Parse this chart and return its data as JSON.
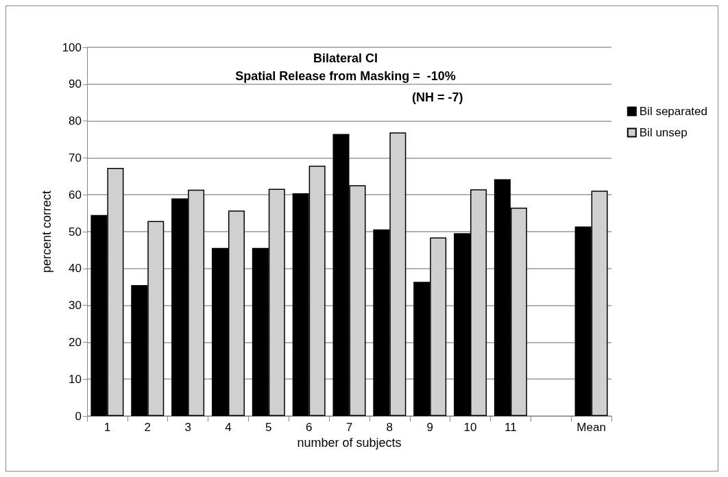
{
  "chart_data": {
    "type": "bar",
    "title": "Bilateral CI",
    "subtitle": "Spatial Release from Masking =  -10%",
    "annotations": [
      "(NH = -7)"
    ],
    "xlabel": "number of subjects",
    "ylabel": "percent correct",
    "categories": [
      "1",
      "2",
      "3",
      "4",
      "5",
      "6",
      "7",
      "8",
      "9",
      "10",
      "11",
      null,
      "Mean"
    ],
    "series": [
      {
        "name": "Bil separated",
        "color": "#000000",
        "values": [
          54.5,
          35.5,
          59,
          45.6,
          45.6,
          60.4,
          76.5,
          50.6,
          36.4,
          49.6,
          64.2,
          null,
          51.4
        ]
      },
      {
        "name": "Bil unsep",
        "color": "#d0d0d0",
        "values": [
          67.3,
          52.9,
          61.4,
          55.7,
          61.6,
          67.9,
          62.6,
          76.9,
          48.4,
          61.5,
          56.5,
          null,
          61.1
        ]
      }
    ],
    "ylim": [
      0,
      100
    ],
    "yticks": [
      0,
      10,
      20,
      30,
      40,
      50,
      60,
      70,
      80,
      90,
      100
    ],
    "grid": "y",
    "legend": "right"
  }
}
